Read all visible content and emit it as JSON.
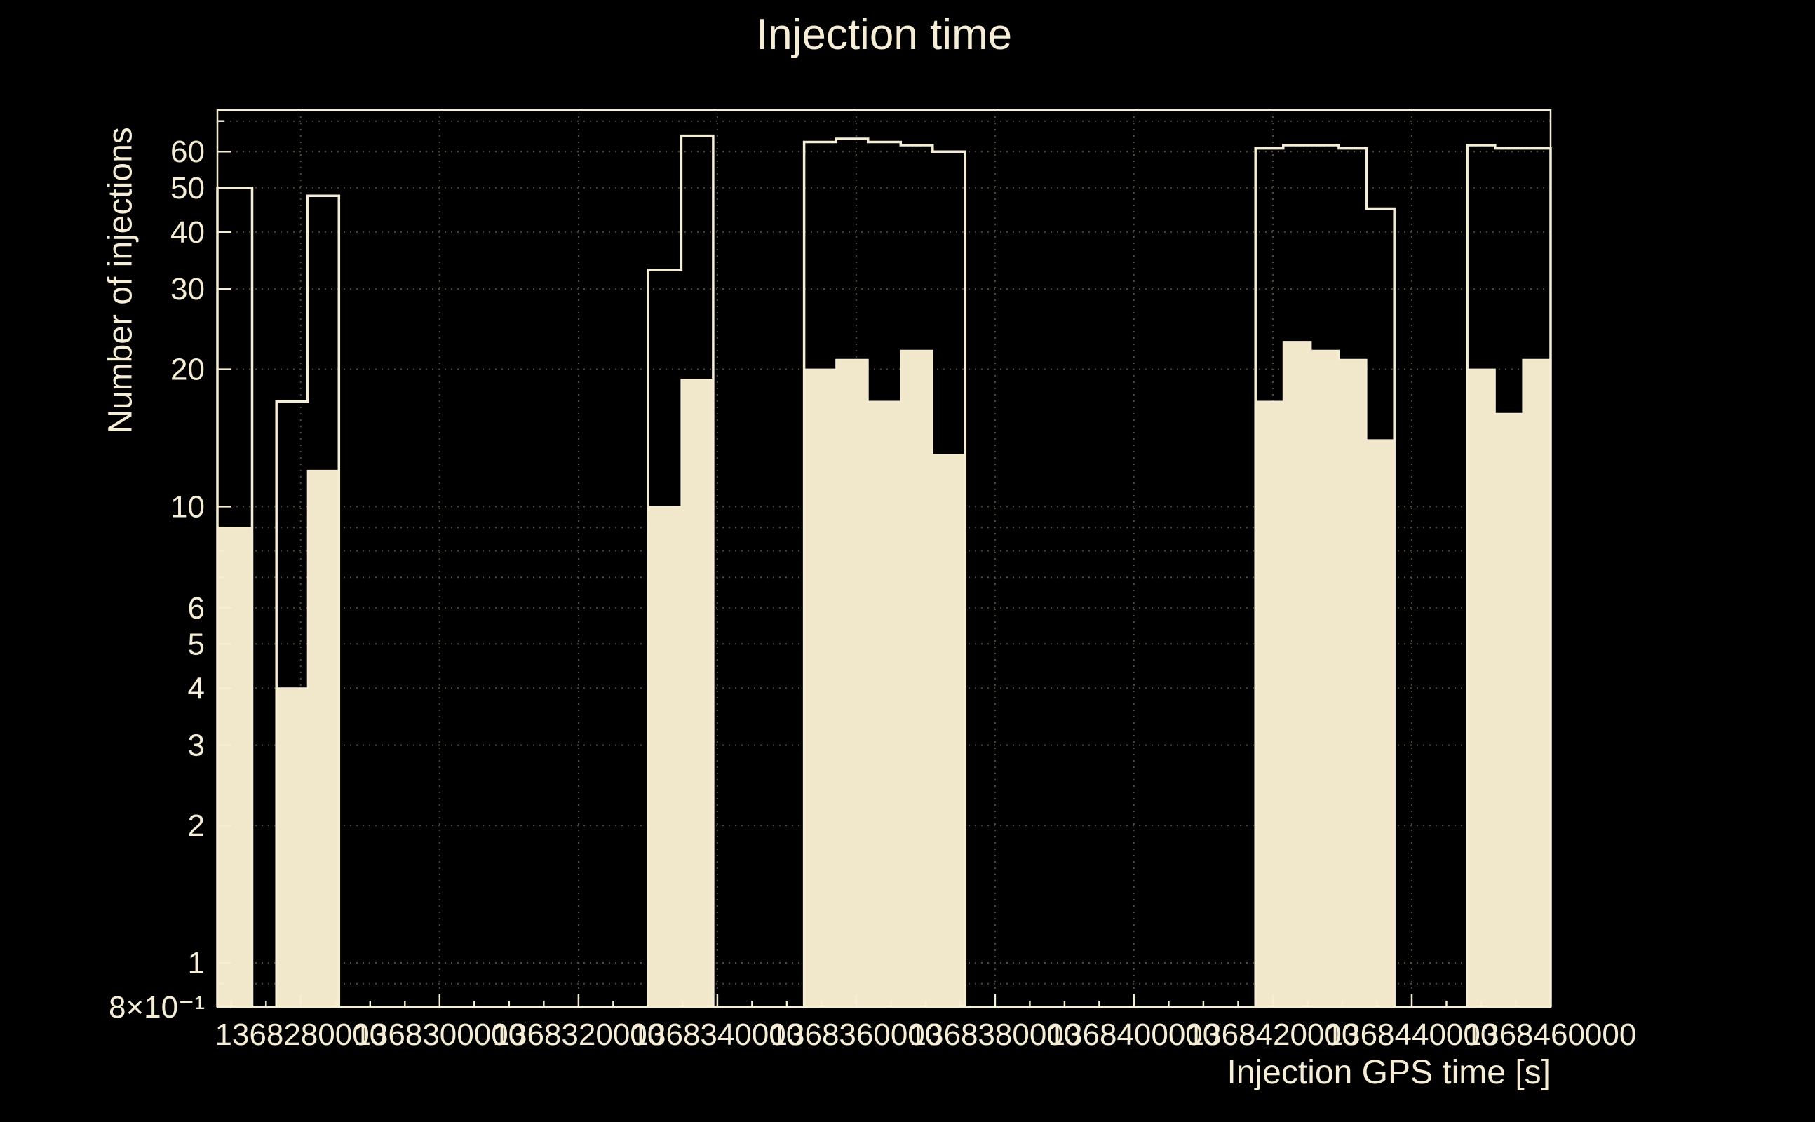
{
  "colors": {
    "background": "#000000",
    "foreground": "#f5edd6",
    "fill": "#f1e7ca",
    "grid": "#4e4939"
  },
  "chart_data": {
    "type": "bar",
    "subtype": "step-histogram",
    "title": "Injection time",
    "xlabel": "Injection GPS time [s]",
    "ylabel": "Number of injections",
    "x_range": [
      1368268000,
      1368460000
    ],
    "y_range": [
      0.8,
      74
    ],
    "y_scale": "log",
    "grid": "on",
    "legend": "none",
    "x_ticks": [
      {
        "v": 1368280000,
        "label": "1368280000"
      },
      {
        "v": 1368300000,
        "label": "1368300000"
      },
      {
        "v": 1368320000,
        "label": "1368320000"
      },
      {
        "v": 1368340000,
        "label": "1368340000"
      },
      {
        "v": 1368360000,
        "label": "1368360000"
      },
      {
        "v": 1368380000,
        "label": "1368380000"
      },
      {
        "v": 1368400000,
        "label": "1368400000"
      },
      {
        "v": 1368420000,
        "label": "1368420000"
      },
      {
        "v": 1368440000,
        "label": "1368440000"
      },
      {
        "v": 1368460000,
        "label": "1368460000"
      }
    ],
    "y_ticks": [
      {
        "v": 60,
        "label": "60"
      },
      {
        "v": 50,
        "label": "50"
      },
      {
        "v": 40,
        "label": "40"
      },
      {
        "v": 30,
        "label": "30"
      },
      {
        "v": 20,
        "label": "20"
      },
      {
        "v": 10,
        "label": "10"
      },
      {
        "v": 6,
        "label": "6"
      },
      {
        "v": 5,
        "label": "5"
      },
      {
        "v": 4,
        "label": "4"
      },
      {
        "v": 3,
        "label": "3"
      },
      {
        "v": 2,
        "label": "2"
      },
      {
        "v": 1,
        "label": "1"
      },
      {
        "v": 0.8,
        "label": "8×10⁻¹"
      }
    ],
    "y_minor_ticks": [
      0.9,
      7,
      8,
      9,
      70
    ],
    "grid_y": [
      0.9,
      1,
      2,
      3,
      4,
      5,
      6,
      7,
      8,
      9,
      10,
      20,
      30,
      40,
      50,
      60,
      70
    ],
    "series": [
      {
        "name": "filled-histogram",
        "style": "filled",
        "bins": [
          [
            1368268000,
            1368273000,
            9
          ],
          [
            1368276500,
            1368281000,
            4
          ],
          [
            1368281000,
            1368285500,
            12
          ],
          [
            1368330000,
            1368334800,
            10
          ],
          [
            1368334800,
            1368339400,
            19
          ],
          [
            1368352500,
            1368357100,
            20
          ],
          [
            1368357100,
            1368361700,
            21
          ],
          [
            1368361700,
            1368366400,
            17
          ],
          [
            1368366400,
            1368371000,
            22
          ],
          [
            1368371000,
            1368375700,
            13
          ],
          [
            1368417500,
            1368421500,
            17
          ],
          [
            1368421500,
            1368425500,
            23
          ],
          [
            1368425500,
            1368429500,
            22
          ],
          [
            1368429500,
            1368433500,
            21
          ],
          [
            1368433500,
            1368437500,
            14
          ],
          [
            1368448000,
            1368452000,
            20
          ],
          [
            1368452000,
            1368456000,
            16
          ],
          [
            1368456000,
            1368460000,
            21
          ]
        ]
      },
      {
        "name": "outline-histogram",
        "style": "outline",
        "bins": [
          [
            1368268000,
            1368273000,
            50
          ],
          [
            1368276500,
            1368281000,
            17
          ],
          [
            1368281000,
            1368285500,
            48
          ],
          [
            1368330000,
            1368334800,
            33
          ],
          [
            1368334800,
            1368339400,
            65
          ],
          [
            1368352500,
            1368357100,
            63
          ],
          [
            1368357100,
            1368361700,
            64
          ],
          [
            1368361700,
            1368366400,
            63
          ],
          [
            1368366400,
            1368371000,
            62
          ],
          [
            1368371000,
            1368375700,
            60
          ],
          [
            1368417500,
            1368421500,
            61
          ],
          [
            1368421500,
            1368425500,
            62
          ],
          [
            1368425500,
            1368429500,
            62
          ],
          [
            1368429500,
            1368433500,
            61
          ],
          [
            1368433500,
            1368437500,
            45
          ],
          [
            1368448000,
            1368452000,
            62
          ],
          [
            1368452000,
            1368456000,
            61
          ],
          [
            1368456000,
            1368460000,
            61
          ]
        ]
      }
    ]
  }
}
